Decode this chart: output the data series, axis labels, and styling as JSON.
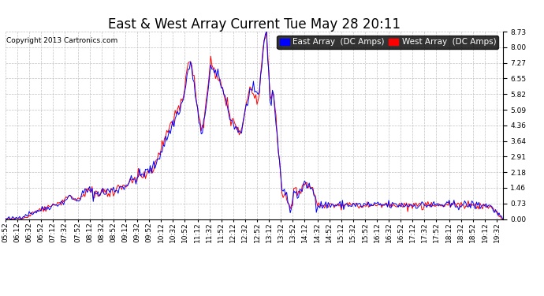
{
  "title": "East & West Array Current Tue May 28 20:11",
  "copyright": "Copyright 2013 Cartronics.com",
  "ylabel_east": "East Array  (DC Amps)",
  "ylabel_west": "West Array  (DC Amps)",
  "east_color": "#0000ff",
  "west_color": "#ff0000",
  "background_color": "#ffffff",
  "plot_bg_color": "#ffffff",
  "grid_color": "#bbbbbb",
  "ylim": [
    0.0,
    8.73
  ],
  "yticks": [
    0.0,
    0.73,
    1.46,
    2.18,
    2.91,
    3.64,
    4.36,
    5.09,
    5.82,
    6.55,
    7.27,
    8.0,
    8.73
  ],
  "title_fontsize": 12,
  "tick_fontsize": 6.5,
  "legend_fontsize": 7.5,
  "copyright_fontsize": 6.5
}
